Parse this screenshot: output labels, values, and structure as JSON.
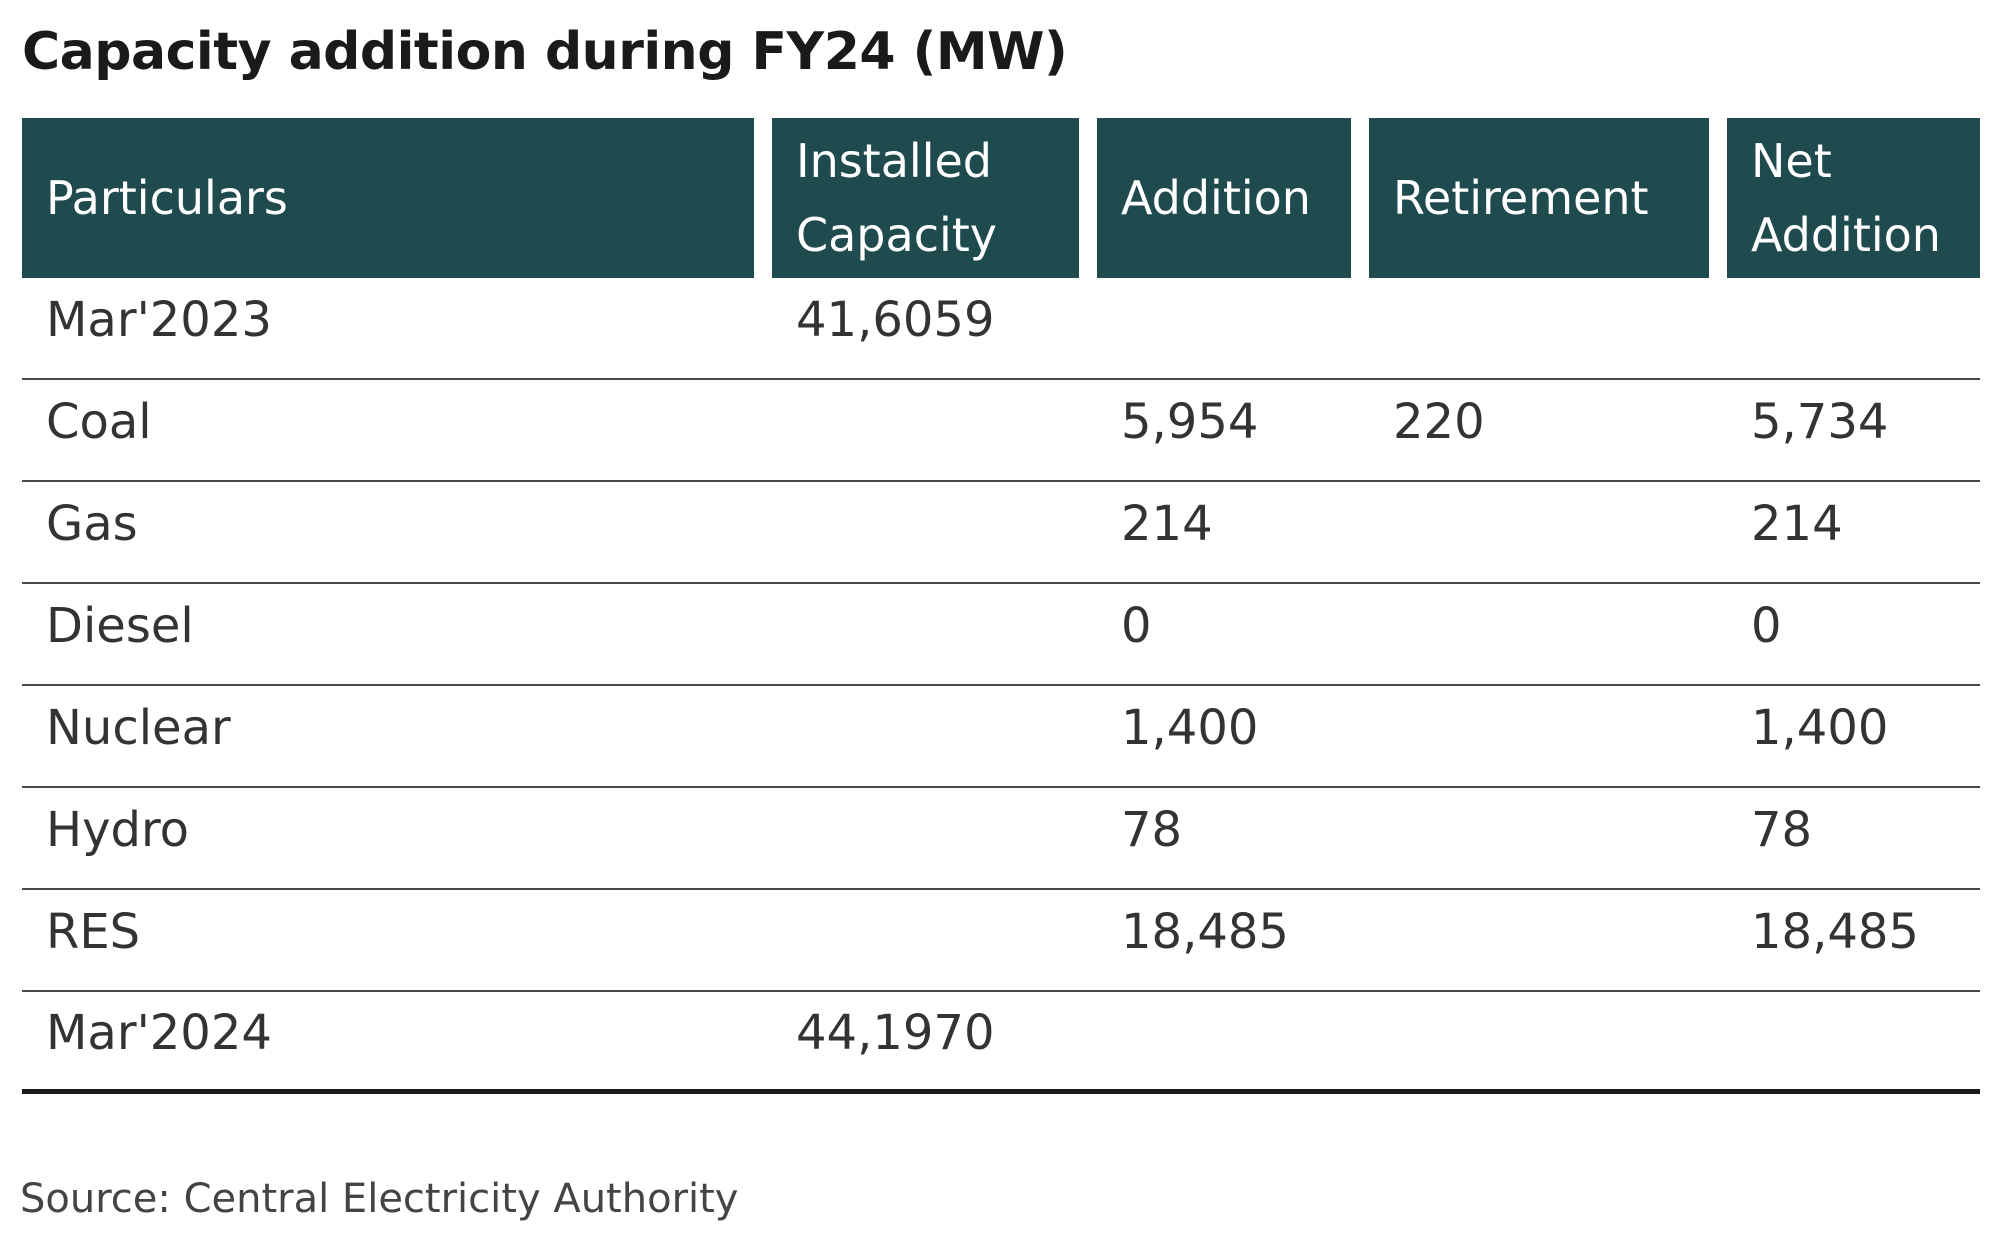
{
  "chart_data": {
    "type": "table",
    "title": "Capacity addition during FY24 (MW)",
    "columns": [
      "Particulars",
      "Installed\nCapacity",
      "Addition",
      "Retirement",
      "Net\nAddition"
    ],
    "rows": [
      [
        "Mar'2023",
        "41,6059",
        "",
        "",
        ""
      ],
      [
        "Coal",
        "",
        "5,954",
        "220",
        "5,734"
      ],
      [
        "Gas",
        "",
        "214",
        "",
        "214"
      ],
      [
        "Diesel",
        "",
        "0",
        "",
        "0"
      ],
      [
        "Nuclear",
        "",
        "1,400",
        "",
        "1,400"
      ],
      [
        "Hydro",
        "",
        "78",
        "",
        "78"
      ],
      [
        "RES",
        "",
        "18,485",
        "",
        "18,485"
      ],
      [
        "Mar'2024",
        "44,1970",
        "",
        "",
        ""
      ]
    ],
    "source": "Source: Central Electricity Authority",
    "colors": {
      "header_bg": "#1f4a4e",
      "header_text": "#ffffff"
    }
  }
}
